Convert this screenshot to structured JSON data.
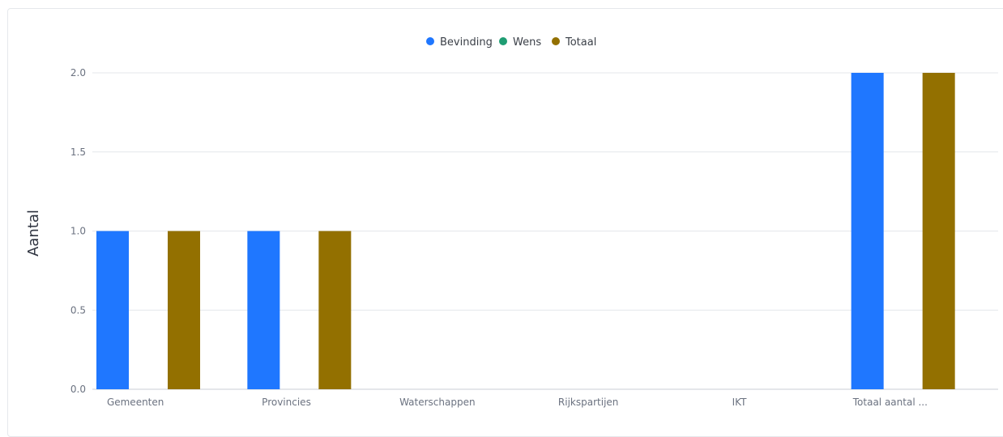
{
  "chart_data": {
    "type": "bar",
    "categories": [
      "Gemeenten",
      "Provincies",
      "Waterschappen",
      "Rijkspartijen",
      "IKT",
      "Totaal aantal ..."
    ],
    "series": [
      {
        "name": "Bevinding",
        "color": "#1f77ff",
        "values": [
          1,
          1,
          0,
          0,
          0,
          2
        ]
      },
      {
        "name": "Wens",
        "color": "#1f9d73",
        "values": [
          0,
          0,
          0,
          0,
          0,
          0
        ]
      },
      {
        "name": "Totaal",
        "color": "#937000",
        "values": [
          1,
          1,
          0,
          0,
          0,
          2
        ]
      }
    ],
    "title": "",
    "xlabel": "",
    "ylabel": "Aantal",
    "ylim": [
      0,
      2
    ],
    "yticks": [
      "0.0",
      "0.5",
      "1.0",
      "1.5",
      "2.0"
    ],
    "legend_position": "top-center",
    "grid": true
  }
}
